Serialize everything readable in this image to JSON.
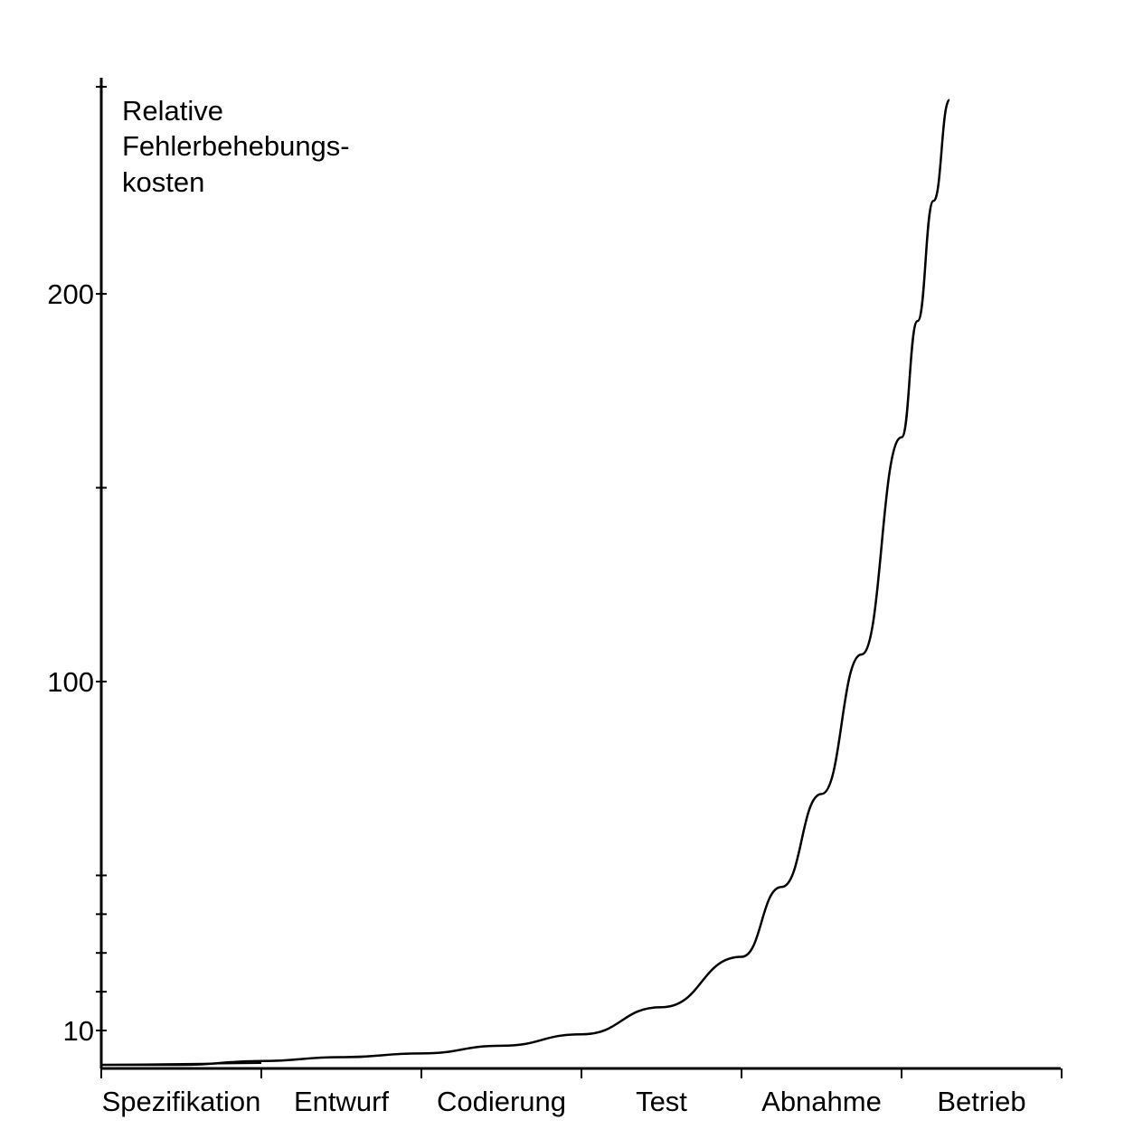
{
  "chart_data": {
    "type": "line",
    "title": "",
    "xlabel": "",
    "ylabel_lines": [
      "Relative",
      "Fehlerbehebungs-",
      "kosten"
    ],
    "categories": [
      "Spezifikation",
      "Entwurf",
      "Codierung",
      "Test",
      "Abnahme",
      "Betrieb"
    ],
    "y_tick_labels": [
      {
        "value": 10,
        "label": "10"
      },
      {
        "value": 100,
        "label": "100"
      },
      {
        "value": 200,
        "label": "200"
      }
    ],
    "y_minor_ticks": [
      20,
      30,
      40,
      50,
      150
    ],
    "ylim": [
      1,
      250
    ],
    "grid": false,
    "series": [
      {
        "x": [
          0.0,
          0.5,
          1.0,
          1.5,
          2.0,
          2.5,
          3.0,
          3.5,
          4.0,
          4.25,
          4.5,
          4.75,
          5.0,
          5.1,
          5.2,
          5.3
        ],
        "y": [
          1,
          1,
          2,
          3,
          4,
          6,
          9,
          16,
          29,
          47,
          71,
          107,
          163,
          193,
          224,
          250
        ]
      }
    ],
    "colors": {
      "line": "#000000",
      "axis": "#000000",
      "background": "#ffffff"
    }
  }
}
